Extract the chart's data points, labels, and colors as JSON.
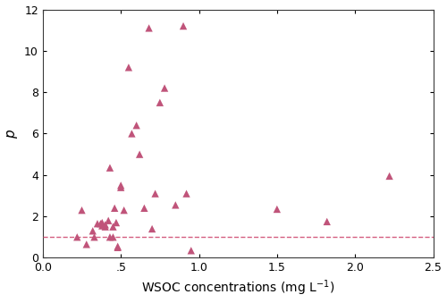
{
  "x": [
    0.22,
    0.25,
    0.28,
    0.32,
    0.33,
    0.35,
    0.37,
    0.38,
    0.38,
    0.4,
    0.4,
    0.42,
    0.43,
    0.43,
    0.45,
    0.45,
    0.46,
    0.47,
    0.48,
    0.48,
    0.5,
    0.5,
    0.52,
    0.55,
    0.57,
    0.6,
    0.62,
    0.65,
    0.68,
    0.7,
    0.72,
    0.75,
    0.78,
    0.85,
    0.9,
    0.92,
    0.95,
    1.5,
    1.82,
    2.22
  ],
  "y": [
    1.0,
    2.3,
    0.65,
    1.3,
    1.0,
    1.65,
    1.65,
    1.55,
    1.7,
    1.6,
    1.5,
    1.8,
    4.35,
    1.0,
    1.5,
    1.0,
    2.4,
    1.7,
    0.5,
    0.55,
    3.5,
    3.4,
    2.3,
    9.2,
    6.0,
    6.4,
    5.0,
    2.4,
    11.1,
    1.4,
    3.1,
    7.5,
    8.2,
    2.55,
    11.2,
    3.1,
    0.35,
    2.35,
    1.75,
    3.95
  ],
  "marker_color": "#c0547a",
  "dashed_line_y": 1.0,
  "dashed_line_color": "#d45f80",
  "xlim": [
    0.0,
    2.5
  ],
  "ylim": [
    0,
    12
  ],
  "xticks": [
    0.0,
    0.5,
    1.0,
    1.5,
    2.0,
    2.5
  ],
  "xticklabels": [
    "0.0",
    ".5",
    "1.0",
    "1.5",
    "2.0",
    "2.5"
  ],
  "yticks": [
    0,
    2,
    4,
    6,
    8,
    10,
    12
  ],
  "yticklabels": [
    "0",
    "2",
    "4",
    "6",
    "8",
    "10",
    "12"
  ],
  "xlabel": "WSOC concentrations (mg L$^{-1}$)",
  "ylabel": "$p$",
  "marker_size": 36,
  "tick_fontsize": 9,
  "label_fontsize": 10,
  "ylabel_fontsize": 11
}
